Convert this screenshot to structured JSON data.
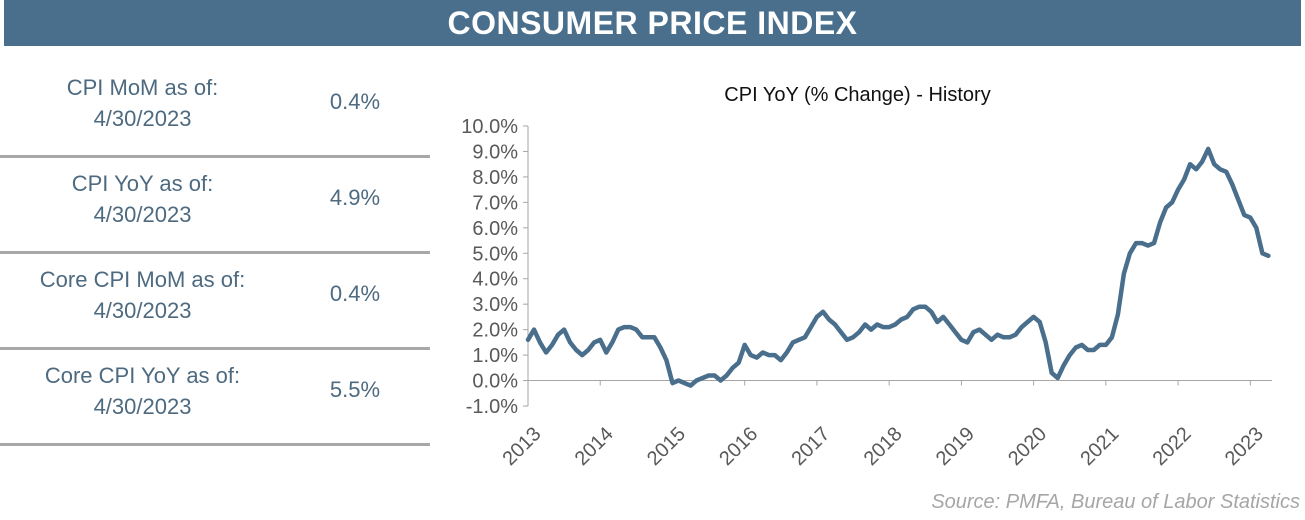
{
  "header": {
    "title": "CONSUMER PRICE INDEX"
  },
  "stats": [
    {
      "label_line1": "CPI MoM as of:",
      "label_line2": "4/30/2023",
      "value": "0.4%"
    },
    {
      "label_line1": "CPI YoY as of:",
      "label_line2": "4/30/2023",
      "value": "4.9%"
    },
    {
      "label_line1": "Core CPI MoM as of:",
      "label_line2": "4/30/2023",
      "value": "0.4%"
    },
    {
      "label_line1": "Core CPI YoY as of:",
      "label_line2": "4/30/2023",
      "value": "5.5%"
    }
  ],
  "source": "Source:  PMFA,  Bureau of Labor Statistics",
  "colors": {
    "banner": "#4a6f8c",
    "line": "#4a6f8c",
    "label_text": "#4d6a80",
    "divider": "#a8a8a8"
  },
  "chart_data": {
    "type": "line",
    "title": "CPI YoY (% Change) - History",
    "xlabel": "",
    "ylabel": "",
    "ylim": [
      -1.0,
      10.0
    ],
    "y_ticks": [
      "10.0%",
      "9.0%",
      "8.0%",
      "7.0%",
      "6.0%",
      "5.0%",
      "4.0%",
      "3.0%",
      "2.0%",
      "1.0%",
      "0.0%",
      "-1.0%"
    ],
    "x_ticks": [
      "2013",
      "2014",
      "2015",
      "2016",
      "2017",
      "2018",
      "2019",
      "2020",
      "2021",
      "2022",
      "2023"
    ],
    "grid": false,
    "series": [
      {
        "x": [
          "2013-01",
          "2013-02",
          "2013-03",
          "2013-04",
          "2013-05",
          "2013-06",
          "2013-07",
          "2013-08",
          "2013-09",
          "2013-10",
          "2013-11",
          "2013-12",
          "2014-01",
          "2014-02",
          "2014-03",
          "2014-04",
          "2014-05",
          "2014-06",
          "2014-07",
          "2014-08",
          "2014-09",
          "2014-10",
          "2014-11",
          "2014-12",
          "2015-01",
          "2015-02",
          "2015-03",
          "2015-04",
          "2015-05",
          "2015-06",
          "2015-07",
          "2015-08",
          "2015-09",
          "2015-10",
          "2015-11",
          "2015-12",
          "2016-01",
          "2016-02",
          "2016-03",
          "2016-04",
          "2016-05",
          "2016-06",
          "2016-07",
          "2016-08",
          "2016-09",
          "2016-10",
          "2016-11",
          "2016-12",
          "2017-01",
          "2017-02",
          "2017-03",
          "2017-04",
          "2017-05",
          "2017-06",
          "2017-07",
          "2017-08",
          "2017-09",
          "2017-10",
          "2017-11",
          "2017-12",
          "2018-01",
          "2018-02",
          "2018-03",
          "2018-04",
          "2018-05",
          "2018-06",
          "2018-07",
          "2018-08",
          "2018-09",
          "2018-10",
          "2018-11",
          "2018-12",
          "2019-01",
          "2019-02",
          "2019-03",
          "2019-04",
          "2019-05",
          "2019-06",
          "2019-07",
          "2019-08",
          "2019-09",
          "2019-10",
          "2019-11",
          "2019-12",
          "2020-01",
          "2020-02",
          "2020-03",
          "2020-04",
          "2020-05",
          "2020-06",
          "2020-07",
          "2020-08",
          "2020-09",
          "2020-10",
          "2020-11",
          "2020-12",
          "2021-01",
          "2021-02",
          "2021-03",
          "2021-04",
          "2021-05",
          "2021-06",
          "2021-07",
          "2021-08",
          "2021-09",
          "2021-10",
          "2021-11",
          "2021-12",
          "2022-01",
          "2022-02",
          "2022-03",
          "2022-04",
          "2022-05",
          "2022-06",
          "2022-07",
          "2022-08",
          "2022-09",
          "2022-10",
          "2022-11",
          "2022-12",
          "2023-01",
          "2023-02",
          "2023-03",
          "2023-04"
        ],
        "values": [
          1.6,
          2.0,
          1.5,
          1.1,
          1.4,
          1.8,
          2.0,
          1.5,
          1.2,
          1.0,
          1.2,
          1.5,
          1.6,
          1.1,
          1.5,
          2.0,
          2.1,
          2.1,
          2.0,
          1.7,
          1.7,
          1.7,
          1.3,
          0.8,
          -0.1,
          0.0,
          -0.1,
          -0.2,
          0.0,
          0.1,
          0.2,
          0.2,
          0.0,
          0.2,
          0.5,
          0.7,
          1.4,
          1.0,
          0.9,
          1.1,
          1.0,
          1.0,
          0.8,
          1.1,
          1.5,
          1.6,
          1.7,
          2.1,
          2.5,
          2.7,
          2.4,
          2.2,
          1.9,
          1.6,
          1.7,
          1.9,
          2.2,
          2.0,
          2.2,
          2.1,
          2.1,
          2.2,
          2.4,
          2.5,
          2.8,
          2.9,
          2.9,
          2.7,
          2.3,
          2.5,
          2.2,
          1.9,
          1.6,
          1.5,
          1.9,
          2.0,
          1.8,
          1.6,
          1.8,
          1.7,
          1.7,
          1.8,
          2.1,
          2.3,
          2.5,
          2.3,
          1.5,
          0.3,
          0.1,
          0.6,
          1.0,
          1.3,
          1.4,
          1.2,
          1.2,
          1.4,
          1.4,
          1.7,
          2.6,
          4.2,
          5.0,
          5.4,
          5.4,
          5.3,
          5.4,
          6.2,
          6.8,
          7.0,
          7.5,
          7.9,
          8.5,
          8.3,
          8.6,
          9.1,
          8.5,
          8.3,
          8.2,
          7.7,
          7.1,
          6.5,
          6.4,
          6.0,
          5.0,
          4.9
        ]
      }
    ]
  }
}
